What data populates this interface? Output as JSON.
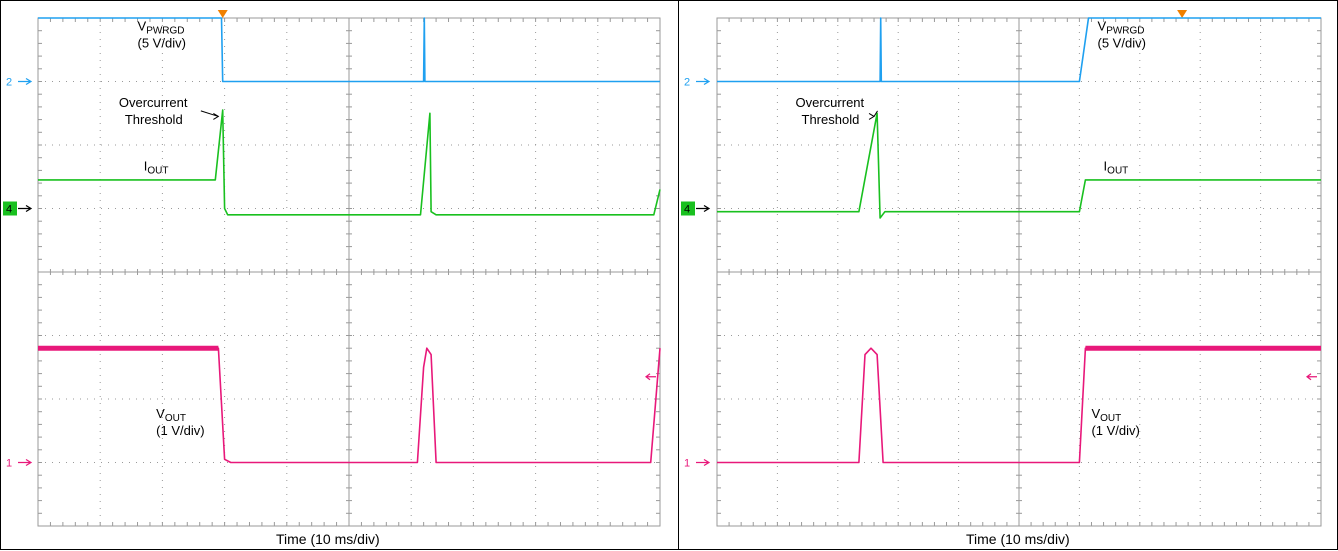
{
  "colors": {
    "grid": "#9a9a9a",
    "vpwrgd": "#1fa0f0",
    "iout": "#19c01f",
    "vout": "#e8187a",
    "trigger": "#f08000",
    "ch4_marker_bg": "#19c01f",
    "text": "#000000"
  },
  "chart_data": [
    {
      "type": "line",
      "title": "",
      "xlabel": "Time (10 ms/div)",
      "ylabel": "",
      "grid": true,
      "xdiv": 10,
      "ydiv": 8,
      "channel_markers": [
        {
          "label": "2",
          "level_div": 6.0,
          "color": "#1fa0f0"
        },
        {
          "label": "4",
          "level_div": 4.0,
          "color": "#19c01f",
          "boxed": true
        },
        {
          "label": "1",
          "level_div": 0.0,
          "color": "#e8187a"
        }
      ],
      "series": [
        {
          "name": "VPWRGD",
          "color": "#1fa0f0",
          "points": [
            [
              0,
              7.0
            ],
            [
              2.95,
              7.0
            ],
            [
              2.97,
              6.0
            ],
            [
              6.2,
              6.0
            ],
            [
              6.21,
              7.0
            ],
            [
              6.22,
              6.0
            ],
            [
              10,
              6.0
            ]
          ]
        },
        {
          "name": "IOUT",
          "color": "#19c01f",
          "points": [
            [
              0,
              4.45
            ],
            [
              2.85,
              4.45
            ],
            [
              2.97,
              5.55
            ],
            [
              3.0,
              4.0
            ],
            [
              3.05,
              3.9
            ],
            [
              6.15,
              3.9
            ],
            [
              6.3,
              5.5
            ],
            [
              6.32,
              3.95
            ],
            [
              6.4,
              3.9
            ],
            [
              9.9,
              3.9
            ],
            [
              10,
              4.3
            ]
          ]
        },
        {
          "name": "VOUT",
          "color": "#e8187a",
          "thick_segments": true,
          "points": [
            [
              0,
              1.8
            ],
            [
              2.9,
              1.8
            ],
            [
              3.0,
              0.05
            ],
            [
              3.1,
              0.0
            ],
            [
              6.1,
              0.0
            ],
            [
              6.2,
              1.5
            ],
            [
              6.25,
              1.8
            ],
            [
              6.32,
              1.7
            ],
            [
              6.4,
              0.0
            ],
            [
              9.85,
              0.0
            ],
            [
              10,
              1.8
            ]
          ]
        }
      ],
      "annotations": [
        {
          "main": "V",
          "sub": "PWRGD",
          "text2": "(5 V/div)",
          "x_div": 1.6,
          "y_div": 6.8
        },
        {
          "main": "Overcurrent",
          "text2": "Threshold",
          "x_div": 1.3,
          "y_div": 5.6,
          "arrow_to": [
            2.9,
            5.45
          ]
        },
        {
          "main": "I",
          "sub": "OUT",
          "x_div": 1.7,
          "y_div": 4.6
        },
        {
          "main": "V",
          "sub": "OUT",
          "text2": "(1 V/div)",
          "x_div": 1.9,
          "y_div": 0.7
        }
      ],
      "trigger_x_div": 2.97
    },
    {
      "type": "line",
      "title": "",
      "xlabel": "Time (10 ms/div)",
      "ylabel": "",
      "grid": true,
      "xdiv": 10,
      "ydiv": 8,
      "channel_markers": [
        {
          "label": "2",
          "level_div": 6.0,
          "color": "#1fa0f0"
        },
        {
          "label": "4",
          "level_div": 4.0,
          "color": "#19c01f",
          "boxed": true
        },
        {
          "label": "1",
          "level_div": 0.0,
          "color": "#e8187a"
        }
      ],
      "series": [
        {
          "name": "VPWRGD",
          "color": "#1fa0f0",
          "points": [
            [
              0,
              6.0
            ],
            [
              2.7,
              6.0
            ],
            [
              2.71,
              7.0
            ],
            [
              2.72,
              6.0
            ],
            [
              6.0,
              6.0
            ],
            [
              6.15,
              7.0
            ],
            [
              10,
              7.0
            ]
          ]
        },
        {
          "name": "IOUT",
          "color": "#19c01f",
          "points": [
            [
              0,
              3.95
            ],
            [
              2.35,
              3.95
            ],
            [
              2.65,
              5.5
            ],
            [
              2.7,
              3.85
            ],
            [
              2.78,
              3.95
            ],
            [
              6.0,
              3.95
            ],
            [
              6.1,
              4.45
            ],
            [
              10,
              4.45
            ]
          ]
        },
        {
          "name": "VOUT",
          "color": "#e8187a",
          "thick_segments": true,
          "points": [
            [
              0,
              0.0
            ],
            [
              2.35,
              0.0
            ],
            [
              2.45,
              1.7
            ],
            [
              2.55,
              1.8
            ],
            [
              2.65,
              1.7
            ],
            [
              2.75,
              0.0
            ],
            [
              6.0,
              0.0
            ],
            [
              6.1,
              1.8
            ],
            [
              10,
              1.8
            ]
          ]
        }
      ],
      "annotations": [
        {
          "main": "V",
          "sub": "PWRGD",
          "text2": "(5 V/div)",
          "x_div": 6.3,
          "y_div": 6.8
        },
        {
          "main": "Overcurrent",
          "text2": "Threshold",
          "x_div": 1.3,
          "y_div": 5.6,
          "arrow_to": [
            2.6,
            5.45
          ]
        },
        {
          "main": "I",
          "sub": "OUT",
          "x_div": 6.4,
          "y_div": 4.6
        },
        {
          "main": "V",
          "sub": "OUT",
          "text2": "(1 V/div)",
          "x_div": 6.2,
          "y_div": 0.7
        }
      ],
      "trigger_x_div": 7.7
    }
  ]
}
